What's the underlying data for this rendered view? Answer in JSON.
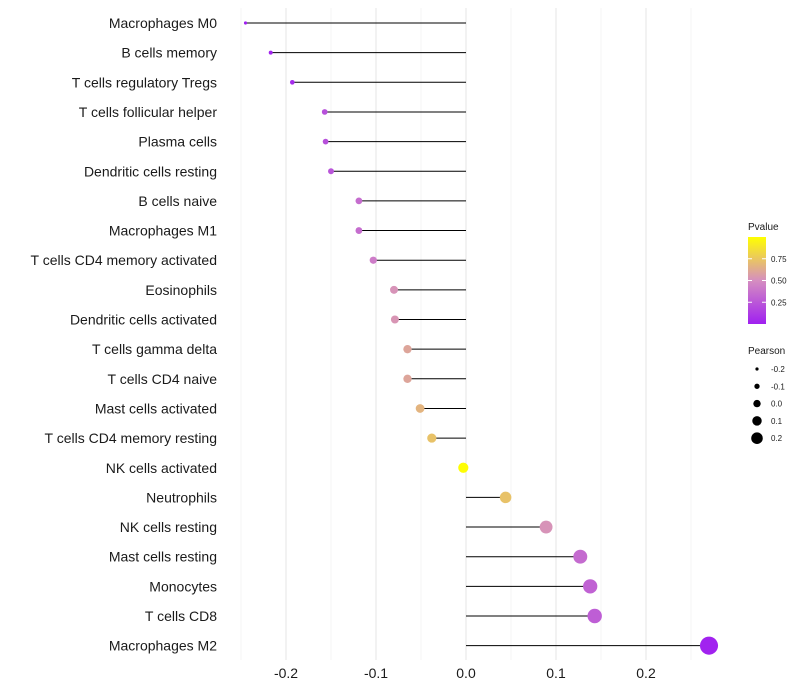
{
  "chart_data": {
    "type": "lollipop",
    "categories": [
      "Macrophages M0",
      "B cells memory",
      "T cells regulatory  Tregs ",
      "T cells follicular helper",
      "Plasma cells",
      "Dendritic cells resting",
      "B cells naive",
      "Macrophages M1",
      "T cells CD4 memory activated",
      "Eosinophils",
      "Dendritic cells activated",
      "T cells gamma delta",
      "T cells CD4 naive",
      "Mast cells activated",
      "T cells CD4 memory resting",
      "NK cells activated",
      "Neutrophils",
      "NK cells resting",
      "Mast cells resting",
      "Monocytes",
      "T cells CD8",
      "Macrophages M2"
    ],
    "pearson": [
      -0.245,
      -0.217,
      -0.193,
      -0.157,
      -0.156,
      -0.15,
      -0.119,
      -0.119,
      -0.103,
      -0.08,
      -0.079,
      -0.065,
      -0.065,
      -0.051,
      -0.038,
      -0.003,
      0.044,
      0.089,
      0.127,
      0.138,
      0.143,
      0.27
    ],
    "pvalue": [
      0.0,
      0.02,
      0.05,
      0.22,
      0.22,
      0.24,
      0.35,
      0.35,
      0.42,
      0.52,
      0.53,
      0.6,
      0.6,
      0.67,
      0.73,
      0.99,
      0.73,
      0.52,
      0.34,
      0.3,
      0.28,
      0.01
    ],
    "xlabel": "",
    "ylabel": "",
    "xlim": [
      -0.25,
      0.28
    ],
    "x_ticks": [
      "-0.2",
      "-0.1",
      "0.0",
      "0.1",
      "0.2"
    ],
    "x_tick_values": [
      -0.2,
      -0.1,
      0.0,
      0.1,
      0.2
    ],
    "grid": true,
    "legend_color": {
      "title": "Pvalue",
      "labels": [
        "0.75",
        "0.50",
        "0.25"
      ],
      "values": [
        0.75,
        0.5,
        0.25
      ],
      "low_color": "#a020f0",
      "mid_color": "#d58ec0",
      "high_color": "#ffff00"
    },
    "legend_size": {
      "title": "Pearson",
      "labels": [
        "-0.2",
        "-0.1",
        "0.0",
        "0.1",
        "0.2"
      ],
      "values": [
        -0.2,
        -0.1,
        0.0,
        0.1,
        0.2
      ]
    },
    "legend_position": "right"
  }
}
